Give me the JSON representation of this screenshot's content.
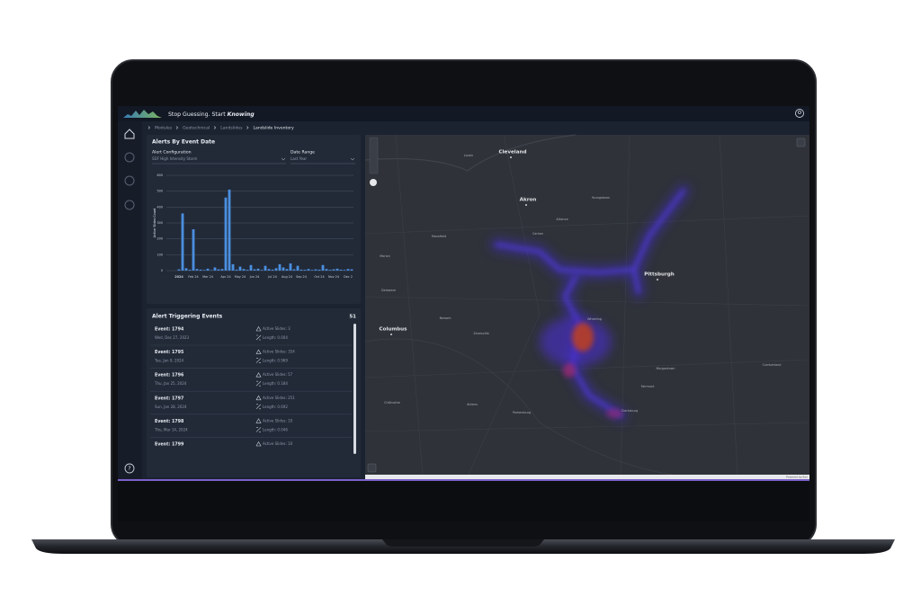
{
  "header": {
    "tagline": "Stop Guessing. Start",
    "tagline_emphasis": "Knowing"
  },
  "breadcrumb": [
    "Modules",
    "Geotechnical",
    "Landslides",
    "Landslide Inventory"
  ],
  "sidebar": {
    "help_icon": "?"
  },
  "alerts_panel": {
    "title": "Alerts By Event Date",
    "alert_configuration": {
      "label": "Alert Configuration",
      "value": "SDF High Intensity Storm"
    },
    "date_range": {
      "label": "Date Range",
      "value": "Last Year"
    },
    "chart": {
      "type": "bar",
      "y_label": "Active Slides Count",
      "color": "#4a8fe0",
      "categories": [
        null,
        null,
        null,
        "2024",
        null,
        null,
        null,
        "Feb 24",
        null,
        null,
        null,
        "Mar 24",
        null,
        null,
        null,
        null,
        "Apr 24",
        null,
        null,
        null,
        "May 24",
        null,
        null,
        null,
        "Jun 24",
        null,
        null,
        null,
        null,
        "Jul 24",
        null,
        null,
        null,
        "Aug 24",
        null,
        null,
        null,
        "Sep 24",
        null,
        null,
        null,
        null,
        "Oct 24",
        null,
        null,
        null,
        "Nov 24",
        null,
        null,
        null,
        "Dec 2",
        null
      ],
      "values": [
        0,
        0,
        0,
        8,
        360,
        15,
        5,
        260,
        10,
        6,
        4,
        12,
        3,
        20,
        8,
        10,
        460,
        510,
        40,
        6,
        25,
        10,
        5,
        35,
        8,
        12,
        4,
        30,
        10,
        6,
        15,
        40,
        20,
        10,
        45,
        8,
        30,
        6,
        5,
        10,
        4,
        8,
        6,
        35,
        10,
        5,
        8,
        12,
        6,
        4,
        10,
        8
      ],
      "ylim": [
        0,
        600
      ],
      "yticks": [
        0,
        100,
        200,
        300,
        400,
        500,
        600
      ],
      "grid": true
    }
  },
  "events_panel": {
    "title": "Alert Triggering Events",
    "count": "51",
    "events": [
      {
        "event": "Event: 1794",
        "date": "Wed, Dec 27, 2023",
        "active_slides": "Active Slides: 3",
        "length": "Length: 0.004"
      },
      {
        "event": "Event: 1795",
        "date": "Tue, Jan 9, 2024",
        "active_slides": "Active Slides: 354",
        "length": "Length: 0.969"
      },
      {
        "event": "Event: 1796",
        "date": "Thu, Jan 25, 2024",
        "active_slides": "Active Slides: 57",
        "length": "Length: 0.184"
      },
      {
        "event": "Event: 1797",
        "date": "Sun, Jan 28, 2024",
        "active_slides": "Active Slides: 251",
        "length": "Length: 0.692"
      },
      {
        "event": "Event: 1798",
        "date": "Thu, Mar 14, 2024",
        "active_slides": "Active Slides: 10",
        "length": "Length: 0.046"
      },
      {
        "event": "Event: 1799",
        "active_slides": "Active Slides: 10"
      }
    ]
  },
  "map": {
    "major_places": [
      "Cleveland",
      "Akron",
      "Pittsburgh",
      "Columbus"
    ],
    "places": [
      "Youngstown",
      "Canton",
      "Mansfield",
      "Wheeling",
      "Zanesville",
      "Newark",
      "Morgantown",
      "Fairmont",
      "Clarksburg",
      "Parkersburg",
      "Athens",
      "Chillicothe",
      "Delaware",
      "Marion",
      "Cumberland",
      "Lorain",
      "Alliance"
    ],
    "attribution": "Powered by Esri"
  }
}
